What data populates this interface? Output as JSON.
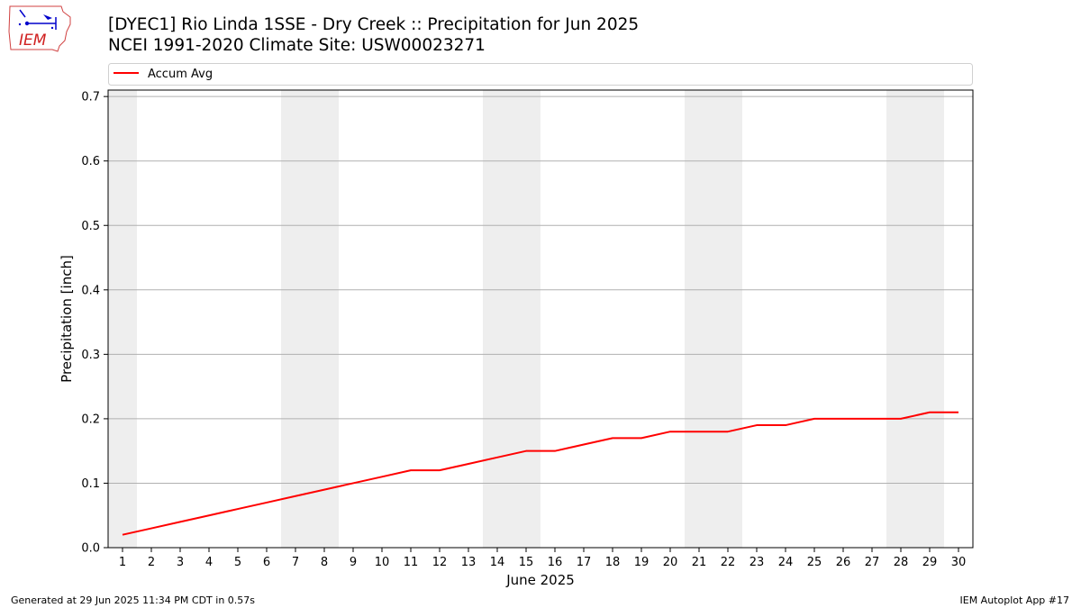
{
  "title_line1": "[DYEC1] Rio Linda 1SSE - Dry Creek :: Precipitation for Jun 2025",
  "title_line2": "NCEI 1991-2020 Climate Site: USW00023271",
  "logo_text": "IEM",
  "footer_left": "Generated at 29 Jun 2025 11:34 PM CDT in 0.57s",
  "footer_right": "IEM Autoplot App #17",
  "chart_data": {
    "type": "line",
    "title": "[DYEC1] Rio Linda 1SSE - Dry Creek :: Precipitation for Jun 2025",
    "subtitle": "NCEI 1991-2020 Climate Site: USW00023271",
    "xlabel": "June 2025",
    "ylabel": "Precipitation [inch]",
    "x": [
      1,
      2,
      3,
      4,
      5,
      6,
      7,
      8,
      9,
      10,
      11,
      12,
      13,
      14,
      15,
      16,
      17,
      18,
      19,
      20,
      21,
      22,
      23,
      24,
      25,
      26,
      27,
      28,
      29,
      30
    ],
    "xlim": [
      0.5,
      30.5
    ],
    "ylim": [
      0.0,
      0.71
    ],
    "yticks": [
      0.0,
      0.1,
      0.2,
      0.3,
      0.4,
      0.5,
      0.6,
      0.7
    ],
    "ytick_labels": [
      "0.0",
      "0.1",
      "0.2",
      "0.3",
      "0.4",
      "0.5",
      "0.6",
      "0.7"
    ],
    "grid": "horizontal",
    "legend": "top-left, above plot",
    "weekend_shading": [
      [
        0.5,
        1.5
      ],
      [
        6.5,
        8.5
      ],
      [
        13.5,
        15.5
      ],
      [
        20.5,
        22.5
      ],
      [
        27.5,
        29.5
      ]
    ],
    "weekend_color": "#eeeeee",
    "series": [
      {
        "name": "Accum Avg",
        "color": "#ff0000",
        "values": [
          0.02,
          0.03,
          0.04,
          0.05,
          0.06,
          0.07,
          0.08,
          0.09,
          0.1,
          0.11,
          0.12,
          0.12,
          0.13,
          0.14,
          0.15,
          0.15,
          0.16,
          0.17,
          0.17,
          0.18,
          0.18,
          0.18,
          0.19,
          0.19,
          0.2,
          0.2,
          0.2,
          0.2,
          0.21,
          0.21
        ]
      }
    ]
  }
}
